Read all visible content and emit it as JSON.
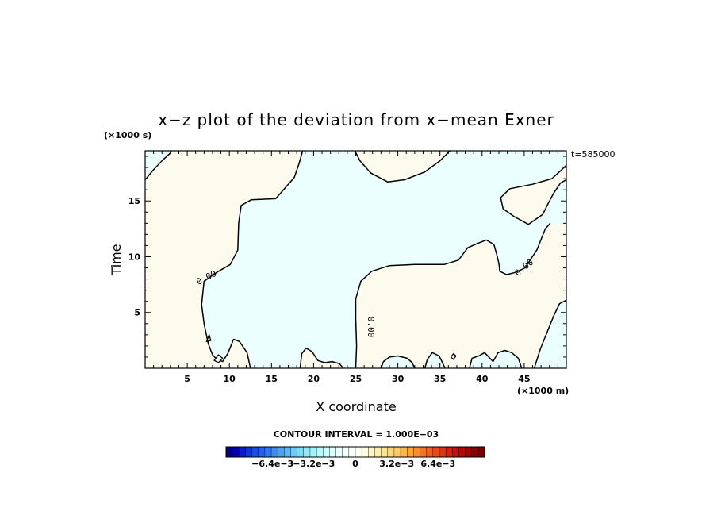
{
  "chart_data": {
    "type": "heatmap",
    "title": "x−z plot of the deviation from x−mean Exner",
    "xlabel": "X coordinate",
    "ylabel": "Time",
    "x_units": "(×1000 m)",
    "y_units": "(×1000 s)",
    "time_stamp": "t=585000",
    "xlim": [
      0,
      50
    ],
    "ylim": [
      0,
      19.5
    ],
    "x_ticks": [
      5,
      10,
      15,
      20,
      25,
      30,
      35,
      40,
      45
    ],
    "y_ticks": [
      5,
      10,
      15
    ],
    "contour_interval_label": "CONTOUR INTERVAL = 1.000E−03",
    "contour_labels": [
      "0.00",
      "0.00",
      "0.00"
    ],
    "fill_colors": {
      "positive": "#fdfbee",
      "negative": "#eafffe"
    },
    "zero_contour": [
      [
        [
          0,
          16.9
        ],
        [
          1,
          17.8
        ],
        [
          2,
          18.6
        ],
        [
          3,
          19.3
        ],
        [
          3.1,
          19.5
        ]
      ],
      [
        [
          18.7,
          19.5
        ],
        [
          18.3,
          18.4
        ],
        [
          17.7,
          17.1
        ],
        [
          15.5,
          15.2
        ],
        [
          12.6,
          15.1
        ],
        [
          11.4,
          14.6
        ],
        [
          11.1,
          13.0
        ],
        [
          11.0,
          10.6
        ],
        [
          10.1,
          9.3
        ],
        [
          8.5,
          8.6
        ],
        [
          7.0,
          7.8
        ],
        [
          6.7,
          5.7
        ],
        [
          7.0,
          4.0
        ],
        [
          7.5,
          2.2
        ],
        [
          8.0,
          1.2
        ],
        [
          8.5,
          0.8
        ],
        [
          9.2,
          0.6
        ],
        [
          9.8,
          1.3
        ],
        [
          10.5,
          2.6
        ],
        [
          11.2,
          2.4
        ],
        [
          12.1,
          1.4
        ],
        [
          12.5,
          0
        ]
      ],
      [
        [
          24.9,
          19.5
        ],
        [
          25.5,
          18.6
        ],
        [
          26.8,
          17.5
        ],
        [
          28.8,
          16.7
        ],
        [
          30.8,
          16.9
        ],
        [
          33.2,
          17.6
        ],
        [
          35.0,
          18.6
        ],
        [
          36.2,
          19.5
        ]
      ],
      [
        [
          50,
          16.9
        ],
        [
          49.3,
          16.6
        ],
        [
          48.5,
          15.7
        ],
        [
          47.8,
          14.7
        ],
        [
          47.2,
          13.8
        ],
        [
          45.5,
          12.9
        ],
        [
          43.8,
          13.6
        ],
        [
          42.5,
          14.3
        ],
        [
          42.2,
          15.3
        ],
        [
          43.3,
          16.1
        ],
        [
          46.0,
          16.5
        ],
        [
          48.3,
          17.0
        ],
        [
          49.3,
          17.7
        ],
        [
          50,
          18.2
        ]
      ],
      [
        [
          50,
          6.1
        ],
        [
          49.2,
          5.8
        ],
        [
          48.5,
          4.7
        ],
        [
          47.6,
          3.0
        ],
        [
          46.9,
          1.7
        ],
        [
          46.2,
          0
        ]
      ],
      [
        [
          25.0,
          0
        ],
        [
          25.1,
          2.0
        ],
        [
          25.0,
          4.4
        ],
        [
          25.0,
          6.2
        ],
        [
          25.6,
          7.8
        ],
        [
          26.9,
          8.7
        ],
        [
          29.0,
          9.2
        ],
        [
          32.0,
          9.3
        ],
        [
          35.5,
          9.3
        ],
        [
          37.2,
          9.7
        ],
        [
          38.3,
          10.8
        ],
        [
          39.5,
          11.2
        ],
        [
          40.5,
          11.5
        ],
        [
          41.4,
          11.1
        ],
        [
          41.7,
          10.3
        ],
        [
          42.0,
          9.4
        ],
        [
          42.1,
          8.7
        ],
        [
          42.9,
          8.4
        ],
        [
          44.0,
          8.6
        ],
        [
          45.1,
          9.0
        ],
        [
          46.5,
          10.6
        ],
        [
          47.5,
          12.5
        ],
        [
          48.1,
          13.0
        ]
      ],
      [
        [
          18.4,
          0
        ],
        [
          18.6,
          1.3
        ],
        [
          19.1,
          1.8
        ],
        [
          19.8,
          1.5
        ],
        [
          20.5,
          0.7
        ],
        [
          21.3,
          0.5
        ],
        [
          22.2,
          0.6
        ],
        [
          23.1,
          0.4
        ],
        [
          23.5,
          0
        ]
      ],
      [
        [
          28.0,
          0
        ],
        [
          28.3,
          0.6
        ],
        [
          29.0,
          1.0
        ],
        [
          30.0,
          1.1
        ],
        [
          31.1,
          0.9
        ],
        [
          31.7,
          0.5
        ],
        [
          32.0,
          0
        ]
      ],
      [
        [
          33.2,
          0
        ],
        [
          33.5,
          0.8
        ],
        [
          34.1,
          1.4
        ],
        [
          34.9,
          1.1
        ],
        [
          35.3,
          0.5
        ],
        [
          35.6,
          0
        ]
      ],
      [
        [
          38.5,
          0
        ],
        [
          38.8,
          0.9
        ],
        [
          39.6,
          1.1
        ],
        [
          40.3,
          1.4
        ],
        [
          40.8,
          1.0
        ],
        [
          41.3,
          0.6
        ],
        [
          41.9,
          1.4
        ],
        [
          42.7,
          1.6
        ],
        [
          43.5,
          1.4
        ],
        [
          44.3,
          0.9
        ],
        [
          44.7,
          0
        ]
      ]
    ],
    "zero_islands": [
      [
        [
          36.3,
          1.0
        ],
        [
          36.6,
          1.3
        ],
        [
          36.9,
          1.1
        ],
        [
          36.6,
          0.8
        ]
      ],
      [
        [
          8.2,
          0.7
        ],
        [
          8.7,
          1.2
        ],
        [
          9.2,
          0.9
        ],
        [
          8.7,
          0.5
        ]
      ],
      [
        [
          7.3,
          2.4
        ],
        [
          7.6,
          3.0
        ],
        [
          7.8,
          2.5
        ]
      ]
    ],
    "colorbar": {
      "tick_labels": [
        "−6.4e−3",
        "−3.2e−3",
        "0",
        "3.2e−3",
        "6.4e−3"
      ],
      "tick_values": [
        -0.0064,
        -0.0032,
        0,
        0.0032,
        0.0064
      ],
      "vmin": -0.01,
      "vmax": 0.01,
      "step": 0.0005,
      "colors": [
        "#00008b",
        "#0000ad",
        "#0a1ccc",
        "#1235d8",
        "#1c4be2",
        "#2660ea",
        "#3276ef",
        "#3e8cf3",
        "#4ca2f6",
        "#5ab7f8",
        "#6acbf8",
        "#7bdcf8",
        "#8ee9f8",
        "#a2f3f8",
        "#b8f9fa",
        "#cefcfb",
        "#defdfb",
        "#ebfefc",
        "#f3fefc",
        "#f9fffd",
        "#fffff2",
        "#fefbe0",
        "#fef5c7",
        "#feedab",
        "#fde48f",
        "#fcd874",
        "#fbca5e",
        "#fab84b",
        "#f8a43c",
        "#f58e30",
        "#f17726",
        "#ec611e",
        "#e54a17",
        "#dc3512",
        "#d1220e",
        "#c4130b",
        "#b50807",
        "#a20305",
        "#8e0103",
        "#7a0000"
      ]
    }
  }
}
